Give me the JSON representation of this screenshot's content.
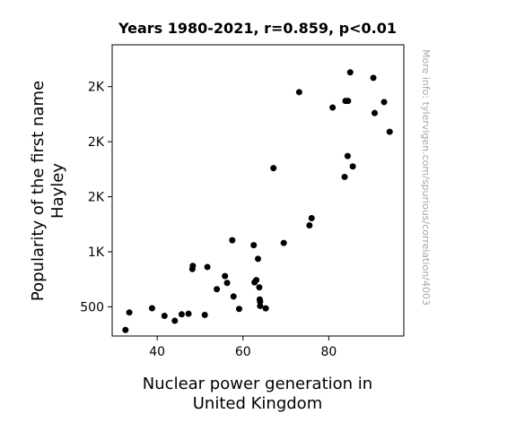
{
  "chart_data": {
    "type": "scatter",
    "title": "Years 1980-2021, r=0.859, p<0.01",
    "xlabel_lines": [
      "Nuclear power generation in",
      "United Kingdom"
    ],
    "ylabel_lines": [
      "Popularity of the first name",
      "Hayley"
    ],
    "side_note": "More info: tylervigen.com/spurious/correlation/4003",
    "xlim": [
      29.5,
      97.5
    ],
    "ylim": [
      235,
      2880
    ],
    "x_ticks": [
      {
        "value": 40,
        "label": "40"
      },
      {
        "value": 60,
        "label": "60"
      },
      {
        "value": 80,
        "label": "80"
      }
    ],
    "y_ticks": [
      {
        "value": 500,
        "label": "500"
      },
      {
        "value": 1000,
        "label": "1K"
      },
      {
        "value": 1500,
        "label": "2K"
      },
      {
        "value": 2000,
        "label": "2K"
      },
      {
        "value": 2500,
        "label": "2K"
      }
    ],
    "marker_color": "#000000",
    "grid": false,
    "points": [
      {
        "x": 32.6,
        "y": 290
      },
      {
        "x": 33.5,
        "y": 449
      },
      {
        "x": 38.8,
        "y": 487
      },
      {
        "x": 41.7,
        "y": 418
      },
      {
        "x": 44.1,
        "y": 373
      },
      {
        "x": 45.7,
        "y": 432
      },
      {
        "x": 47.3,
        "y": 437
      },
      {
        "x": 48.2,
        "y": 843
      },
      {
        "x": 48.3,
        "y": 872
      },
      {
        "x": 51.1,
        "y": 426
      },
      {
        "x": 51.7,
        "y": 862
      },
      {
        "x": 53.9,
        "y": 660
      },
      {
        "x": 55.8,
        "y": 779
      },
      {
        "x": 56.3,
        "y": 717
      },
      {
        "x": 57.5,
        "y": 1105
      },
      {
        "x": 57.8,
        "y": 594
      },
      {
        "x": 59.1,
        "y": 481
      },
      {
        "x": 62.5,
        "y": 1060
      },
      {
        "x": 62.7,
        "y": 722
      },
      {
        "x": 63.1,
        "y": 743
      },
      {
        "x": 63.5,
        "y": 936
      },
      {
        "x": 63.8,
        "y": 677
      },
      {
        "x": 63.9,
        "y": 567
      },
      {
        "x": 64.0,
        "y": 546
      },
      {
        "x": 64.0,
        "y": 508
      },
      {
        "x": 65.3,
        "y": 486
      },
      {
        "x": 67.1,
        "y": 1760
      },
      {
        "x": 69.5,
        "y": 1080
      },
      {
        "x": 73.1,
        "y": 2450
      },
      {
        "x": 75.5,
        "y": 1240
      },
      {
        "x": 76.0,
        "y": 1305
      },
      {
        "x": 80.9,
        "y": 2310
      },
      {
        "x": 83.7,
        "y": 1680
      },
      {
        "x": 83.9,
        "y": 2370
      },
      {
        "x": 84.4,
        "y": 1870
      },
      {
        "x": 84.5,
        "y": 2370
      },
      {
        "x": 85.0,
        "y": 2630
      },
      {
        "x": 85.6,
        "y": 1775
      },
      {
        "x": 90.4,
        "y": 2580
      },
      {
        "x": 90.7,
        "y": 2260
      },
      {
        "x": 92.9,
        "y": 2360
      },
      {
        "x": 94.2,
        "y": 2090
      }
    ]
  }
}
